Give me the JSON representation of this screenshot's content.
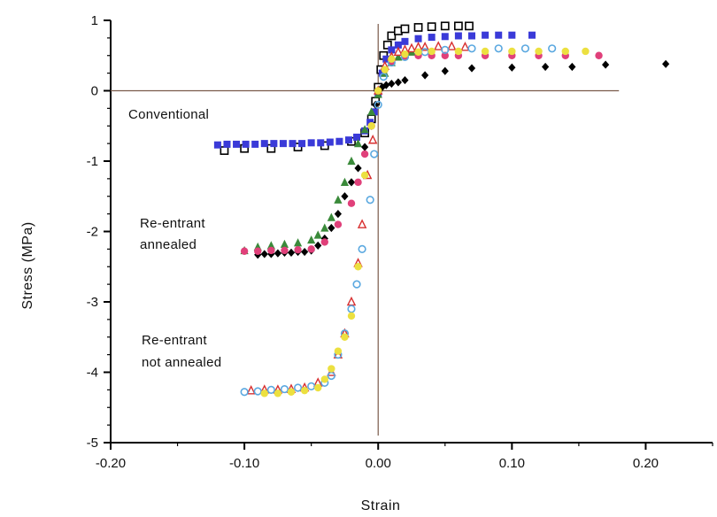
{
  "chart_data": {
    "type": "scatter",
    "xlabel": "Strain",
    "ylabel": "Stress (MPa)",
    "xlim": [
      -0.2,
      0.25
    ],
    "ylim": [
      -5,
      1
    ],
    "x_ticks": [
      "-0.20",
      "-0.10",
      "0.00",
      "0.10",
      "0.20"
    ],
    "y_ticks": [
      "1",
      "0",
      "-1",
      "-2",
      "-3",
      "-4",
      "-5"
    ],
    "annotations": [
      "Conventional",
      "Re-entrant",
      "annealed",
      "Re-entrant",
      "not annealed"
    ],
    "series": [
      {
        "marker": "open-square",
        "color": "#000000",
        "points": [
          [
            -0.115,
            -0.85
          ],
          [
            -0.1,
            -0.82
          ],
          [
            -0.08,
            -0.82
          ],
          [
            -0.06,
            -0.8
          ],
          [
            -0.04,
            -0.78
          ],
          [
            -0.02,
            -0.72
          ],
          [
            -0.01,
            -0.6
          ],
          [
            -0.005,
            -0.4
          ],
          [
            -0.002,
            -0.15
          ],
          [
            0.0,
            0.05
          ],
          [
            0.002,
            0.3
          ],
          [
            0.004,
            0.5
          ],
          [
            0.007,
            0.65
          ],
          [
            0.01,
            0.78
          ],
          [
            0.015,
            0.85
          ],
          [
            0.02,
            0.88
          ],
          [
            0.03,
            0.9
          ],
          [
            0.04,
            0.91
          ],
          [
            0.05,
            0.92
          ],
          [
            0.06,
            0.92
          ],
          [
            0.068,
            0.92
          ]
        ]
      },
      {
        "marker": "filled-square",
        "color": "#3a3ad8",
        "points": [
          [
            -0.12,
            -0.77
          ],
          [
            -0.113,
            -0.76
          ],
          [
            -0.106,
            -0.76
          ],
          [
            -0.099,
            -0.76
          ],
          [
            -0.092,
            -0.76
          ],
          [
            -0.085,
            -0.75
          ],
          [
            -0.078,
            -0.75
          ],
          [
            -0.071,
            -0.75
          ],
          [
            -0.064,
            -0.75
          ],
          [
            -0.057,
            -0.75
          ],
          [
            -0.05,
            -0.74
          ],
          [
            -0.043,
            -0.74
          ],
          [
            -0.036,
            -0.73
          ],
          [
            -0.029,
            -0.72
          ],
          [
            -0.022,
            -0.7
          ],
          [
            -0.016,
            -0.66
          ],
          [
            -0.01,
            -0.57
          ],
          [
            -0.006,
            -0.45
          ],
          [
            -0.003,
            -0.3
          ],
          [
            0.0,
            -0.05
          ],
          [
            0.003,
            0.25
          ],
          [
            0.006,
            0.45
          ],
          [
            0.01,
            0.58
          ],
          [
            0.015,
            0.65
          ],
          [
            0.02,
            0.7
          ],
          [
            0.03,
            0.74
          ],
          [
            0.04,
            0.76
          ],
          [
            0.05,
            0.77
          ],
          [
            0.06,
            0.78
          ],
          [
            0.07,
            0.78
          ],
          [
            0.08,
            0.79
          ],
          [
            0.09,
            0.79
          ],
          [
            0.1,
            0.79
          ],
          [
            0.115,
            0.79
          ]
        ]
      },
      {
        "marker": "filled-triangle",
        "color": "#3a8a3a",
        "points": [
          [
            -0.1,
            -2.27
          ],
          [
            -0.09,
            -2.22
          ],
          [
            -0.08,
            -2.2
          ],
          [
            -0.07,
            -2.18
          ],
          [
            -0.06,
            -2.16
          ],
          [
            -0.05,
            -2.12
          ],
          [
            -0.045,
            -2.05
          ],
          [
            -0.04,
            -1.95
          ],
          [
            -0.035,
            -1.8
          ],
          [
            -0.03,
            -1.55
          ],
          [
            -0.025,
            -1.3
          ],
          [
            -0.02,
            -1.0
          ],
          [
            -0.015,
            -0.75
          ],
          [
            -0.01,
            -0.55
          ],
          [
            -0.005,
            -0.3
          ],
          [
            0.0,
            -0.05
          ],
          [
            0.005,
            0.25
          ],
          [
            0.01,
            0.4
          ],
          [
            0.015,
            0.48
          ],
          [
            0.02,
            0.52
          ],
          [
            0.025,
            0.55
          ],
          [
            0.03,
            0.57
          ]
        ]
      },
      {
        "marker": "filled-diamond",
        "color": "#000000",
        "points": [
          [
            -0.09,
            -2.33
          ],
          [
            -0.085,
            -2.32
          ],
          [
            -0.08,
            -2.32
          ],
          [
            -0.075,
            -2.31
          ],
          [
            -0.07,
            -2.3
          ],
          [
            -0.065,
            -2.3
          ],
          [
            -0.06,
            -2.29
          ],
          [
            -0.055,
            -2.29
          ],
          [
            -0.05,
            -2.27
          ],
          [
            -0.045,
            -2.2
          ],
          [
            -0.04,
            -2.1
          ],
          [
            -0.035,
            -1.95
          ],
          [
            -0.03,
            -1.75
          ],
          [
            -0.025,
            -1.5
          ],
          [
            -0.02,
            -1.3
          ],
          [
            -0.015,
            -1.1
          ],
          [
            -0.01,
            -0.8
          ],
          [
            -0.005,
            -0.5
          ],
          [
            -0.002,
            -0.2
          ],
          [
            0.0,
            0.0
          ],
          [
            0.003,
            0.05
          ],
          [
            0.006,
            0.08
          ],
          [
            0.01,
            0.1
          ],
          [
            0.015,
            0.12
          ],
          [
            0.02,
            0.15
          ],
          [
            0.035,
            0.22
          ],
          [
            0.05,
            0.28
          ],
          [
            0.07,
            0.32
          ],
          [
            0.1,
            0.33
          ],
          [
            0.125,
            0.34
          ],
          [
            0.145,
            0.34
          ],
          [
            0.17,
            0.37
          ],
          [
            0.215,
            0.38
          ]
        ]
      },
      {
        "marker": "filled-circle",
        "color": "#e0407a",
        "points": [
          [
            -0.1,
            -2.28
          ],
          [
            -0.09,
            -2.28
          ],
          [
            -0.08,
            -2.27
          ],
          [
            -0.07,
            -2.27
          ],
          [
            -0.06,
            -2.26
          ],
          [
            -0.05,
            -2.25
          ],
          [
            -0.04,
            -2.15
          ],
          [
            -0.03,
            -1.9
          ],
          [
            -0.02,
            -1.6
          ],
          [
            -0.015,
            -1.3
          ],
          [
            -0.01,
            -0.9
          ],
          [
            -0.005,
            -0.5
          ],
          [
            0.0,
            0.0
          ],
          [
            0.005,
            0.3
          ],
          [
            0.01,
            0.42
          ],
          [
            0.02,
            0.48
          ],
          [
            0.03,
            0.5
          ],
          [
            0.04,
            0.5
          ],
          [
            0.05,
            0.5
          ],
          [
            0.06,
            0.5
          ],
          [
            0.08,
            0.5
          ],
          [
            0.1,
            0.5
          ],
          [
            0.12,
            0.5
          ],
          [
            0.14,
            0.5
          ],
          [
            0.165,
            0.5
          ]
        ]
      },
      {
        "marker": "open-triangle",
        "color": "#d83030",
        "points": [
          [
            -0.095,
            -4.26
          ],
          [
            -0.085,
            -4.25
          ],
          [
            -0.075,
            -4.25
          ],
          [
            -0.065,
            -4.24
          ],
          [
            -0.055,
            -4.22
          ],
          [
            -0.045,
            -4.15
          ],
          [
            -0.035,
            -4.0
          ],
          [
            -0.03,
            -3.75
          ],
          [
            -0.025,
            -3.45
          ],
          [
            -0.02,
            -3.0
          ],
          [
            -0.015,
            -2.45
          ],
          [
            -0.012,
            -1.9
          ],
          [
            -0.008,
            -1.2
          ],
          [
            -0.004,
            -0.7
          ],
          [
            0.0,
            0.0
          ],
          [
            0.005,
            0.35
          ],
          [
            0.01,
            0.48
          ],
          [
            0.015,
            0.55
          ],
          [
            0.02,
            0.58
          ],
          [
            0.025,
            0.6
          ],
          [
            0.03,
            0.62
          ],
          [
            0.035,
            0.62
          ],
          [
            0.045,
            0.63
          ],
          [
            0.055,
            0.63
          ],
          [
            0.065,
            0.62
          ]
        ]
      },
      {
        "marker": "open-circle",
        "color": "#5aa8e0",
        "points": [
          [
            -0.1,
            -4.28
          ],
          [
            -0.09,
            -4.27
          ],
          [
            -0.08,
            -4.25
          ],
          [
            -0.07,
            -4.24
          ],
          [
            -0.06,
            -4.22
          ],
          [
            -0.05,
            -4.2
          ],
          [
            -0.04,
            -4.15
          ],
          [
            -0.035,
            -4.05
          ],
          [
            -0.03,
            -3.75
          ],
          [
            -0.025,
            -3.45
          ],
          [
            -0.02,
            -3.1
          ],
          [
            -0.016,
            -2.75
          ],
          [
            -0.012,
            -2.25
          ],
          [
            -0.006,
            -1.55
          ],
          [
            -0.003,
            -0.9
          ],
          [
            0.0,
            -0.2
          ],
          [
            0.004,
            0.2
          ],
          [
            0.01,
            0.4
          ],
          [
            0.02,
            0.48
          ],
          [
            0.035,
            0.55
          ],
          [
            0.05,
            0.58
          ],
          [
            0.07,
            0.6
          ],
          [
            0.09,
            0.6
          ],
          [
            0.11,
            0.6
          ],
          [
            0.13,
            0.6
          ]
        ]
      },
      {
        "marker": "filled-circle",
        "color": "#ece040",
        "points": [
          [
            -0.085,
            -4.3
          ],
          [
            -0.075,
            -4.3
          ],
          [
            -0.065,
            -4.28
          ],
          [
            -0.055,
            -4.26
          ],
          [
            -0.045,
            -4.22
          ],
          [
            -0.04,
            -4.1
          ],
          [
            -0.035,
            -3.95
          ],
          [
            -0.03,
            -3.7
          ],
          [
            -0.025,
            -3.5
          ],
          [
            -0.02,
            -3.2
          ],
          [
            -0.015,
            -2.5
          ],
          [
            -0.01,
            -1.2
          ],
          [
            -0.005,
            -0.5
          ],
          [
            0.0,
            0.0
          ],
          [
            0.005,
            0.3
          ],
          [
            0.01,
            0.45
          ],
          [
            0.02,
            0.52
          ],
          [
            0.03,
            0.55
          ],
          [
            0.04,
            0.56
          ],
          [
            0.06,
            0.56
          ],
          [
            0.08,
            0.56
          ],
          [
            0.1,
            0.56
          ],
          [
            0.12,
            0.56
          ],
          [
            0.14,
            0.56
          ],
          [
            0.155,
            0.56
          ]
        ]
      }
    ]
  }
}
